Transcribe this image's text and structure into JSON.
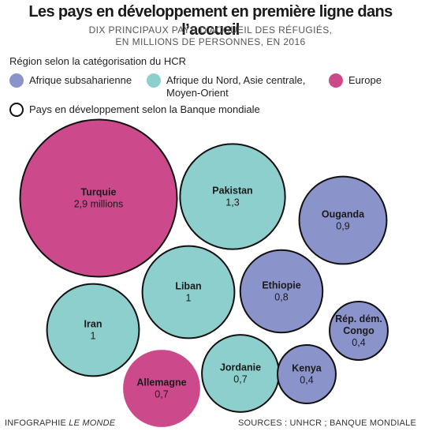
{
  "title": "Les pays en développement en première ligne dans l’accueil",
  "subtitle_line1": "DIX PRINCIPAUX PAYS D’ACCUEIL DES RÉFUGIÉS,",
  "subtitle_line2": "EN MILLIONS DE PERSONNES, EN 2016",
  "legend": {
    "title": "Région selon la catégorisation du HCR",
    "items": [
      {
        "label": "Afrique subsaharienne",
        "color": "#8b93cb"
      },
      {
        "label": "Afrique du Nord, Asie centrale, Moyen-Orient",
        "color": "#8dcfcd"
      },
      {
        "label": "Europe",
        "color": "#cc4a8c"
      }
    ],
    "outline_label": "Pays en développement selon la Banque mondiale"
  },
  "chart_data": {
    "type": "bubble",
    "unit": "millions de personnes",
    "series": [
      {
        "country": "Turquie",
        "label": "2,9 millions",
        "value": 2.9,
        "region": "Europe",
        "developing": true
      },
      {
        "country": "Pakistan",
        "label": "1,3",
        "value": 1.3,
        "region": "Afrique du Nord, Asie centrale, Moyen-Orient",
        "developing": true
      },
      {
        "country": "Ouganda",
        "label": "0,9",
        "value": 0.9,
        "region": "Afrique subsaharienne",
        "developing": true
      },
      {
        "country": "Liban",
        "label": "1",
        "value": 1.0,
        "region": "Afrique du Nord, Asie centrale, Moyen-Orient",
        "developing": true
      },
      {
        "country": "Ethiopie",
        "label": "0,8",
        "value": 0.8,
        "region": "Afrique subsaharienne",
        "developing": true
      },
      {
        "country": "Iran",
        "label": "1",
        "value": 1.0,
        "region": "Afrique du Nord, Asie centrale, Moyen-Orient",
        "developing": true
      },
      {
        "country": "Rép. dém. Congo",
        "label": "0,4",
        "value": 0.4,
        "region": "Afrique subsaharienne",
        "developing": true
      },
      {
        "country": "Jordanie",
        "label": "0,7",
        "value": 0.7,
        "region": "Afrique du Nord, Asie centrale, Moyen-Orient",
        "developing": true
      },
      {
        "country": "Kenya",
        "label": "0,4",
        "value": 0.4,
        "region": "Afrique subsaharienne",
        "developing": true
      },
      {
        "country": "Allemagne",
        "label": "0,7",
        "value": 0.7,
        "region": "Europe",
        "developing": false
      }
    ]
  },
  "footer": {
    "left_prefix": "INFOGRAPHIE ",
    "left_brand": "LE MONDE",
    "right": "SOURCES : UNHCR ; BANQUE MONDIALE"
  }
}
